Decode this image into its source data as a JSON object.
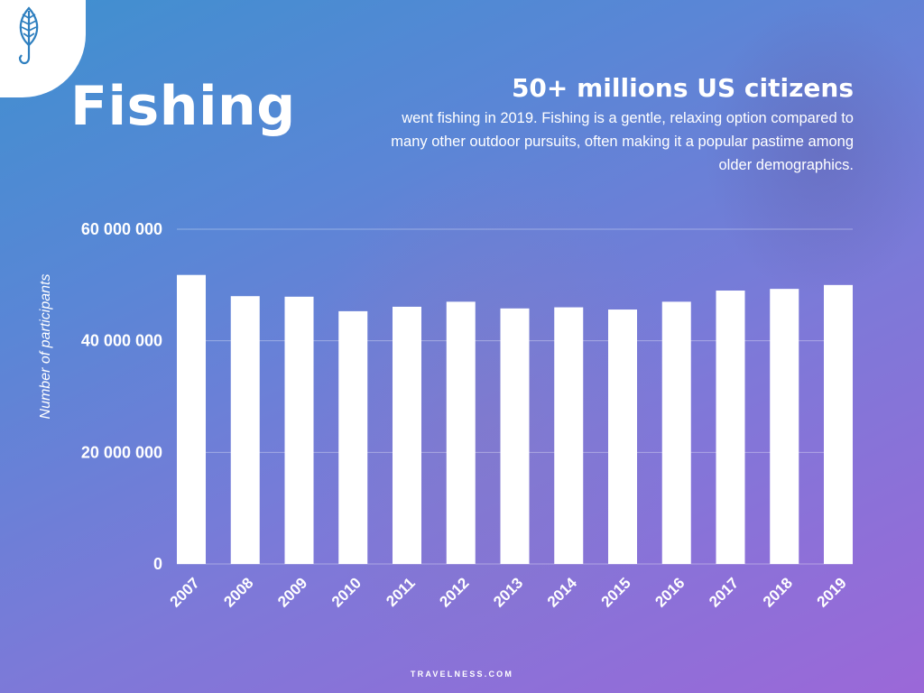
{
  "title": "Fishing",
  "headline": "50+ millions US citizens",
  "subtext": "went fishing in 2019. Fishing is a gentle, relaxing option compared to many other outdoor pursuits, often making it a popular pastime among older demographics.",
  "footer": "TRAVELNESS.COM",
  "logo": {
    "icon": "fish-hook-icon"
  },
  "colors": {
    "bar": "#ffffff",
    "text": "#ffffff",
    "gradient_start": "#3f90cf",
    "gradient_end": "#9b68d8"
  },
  "chart_data": {
    "type": "bar",
    "categories": [
      "2007",
      "2008",
      "2009",
      "2010",
      "2011",
      "2012",
      "2013",
      "2014",
      "2015",
      "2016",
      "2017",
      "2018",
      "2019"
    ],
    "values": [
      51800000,
      48000000,
      47900000,
      45300000,
      46100000,
      47000000,
      45800000,
      46000000,
      45600000,
      47000000,
      49000000,
      49300000,
      50000000
    ],
    "ylabel": "Number of participants",
    "xlabel": "",
    "ylim": [
      0,
      60000000
    ],
    "yticks": [
      0,
      20000000,
      40000000,
      60000000
    ],
    "ytick_labels": [
      "0",
      "20 000 000",
      "40 000 000",
      "60 000 000"
    ],
    "grid": true,
    "legend": "none"
  }
}
